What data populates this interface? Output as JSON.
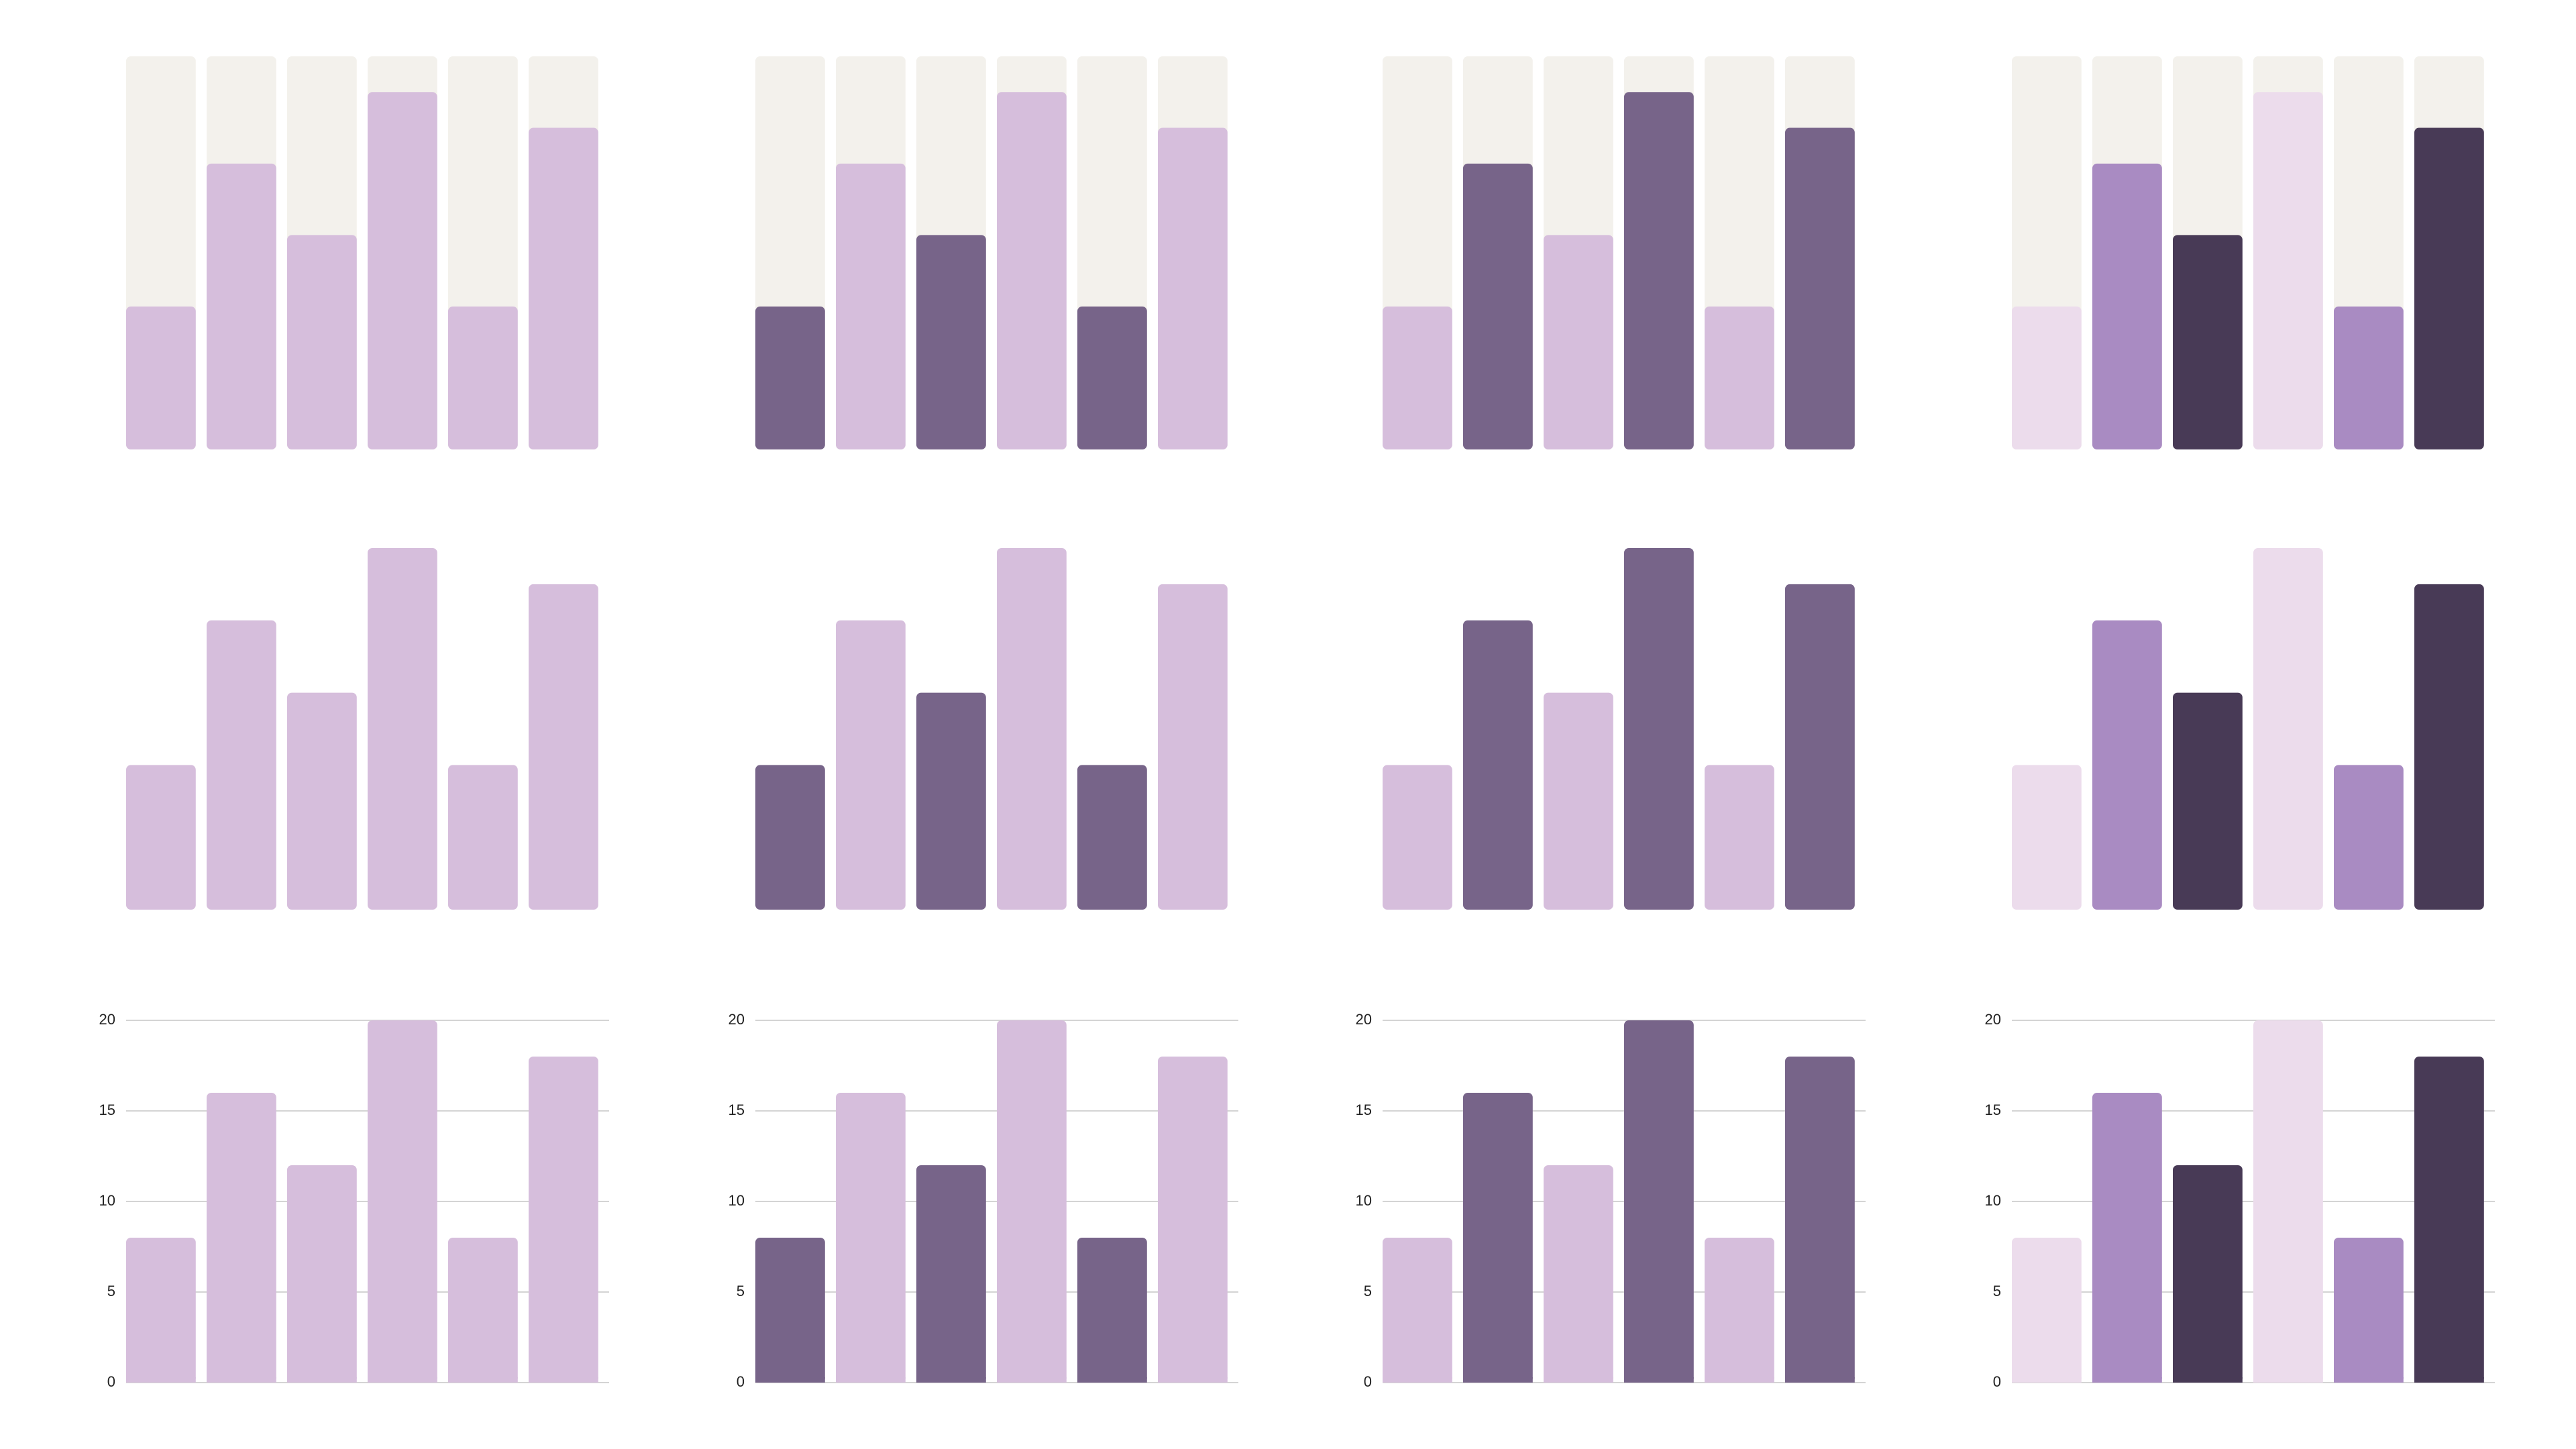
{
  "chart_data": [
    {
      "type": "bar",
      "values": [
        8,
        16,
        12,
        20,
        8,
        18
      ],
      "colors": [
        "#d6bedc",
        "#d6bedc",
        "#d6bedc",
        "#d6bedc",
        "#d6bedc",
        "#d6bedc"
      ],
      "track_color": "#f3f1ec",
      "ylim": [
        0,
        22
      ]
    },
    {
      "type": "bar",
      "values": [
        8,
        16,
        12,
        20,
        8,
        18
      ],
      "colors": [
        "#776489",
        "#d6bedc",
        "#776489",
        "#d6bedc",
        "#776489",
        "#d6bedc"
      ],
      "track_color": "#f3f1ec",
      "ylim": [
        0,
        22
      ]
    },
    {
      "type": "bar",
      "values": [
        8,
        16,
        12,
        20,
        8,
        18
      ],
      "colors": [
        "#d6bedc",
        "#776489",
        "#d6bedc",
        "#776489",
        "#d6bedc",
        "#776489"
      ],
      "track_color": "#f3f1ec",
      "ylim": [
        0,
        22
      ]
    },
    {
      "type": "bar",
      "values": [
        8,
        16,
        12,
        20,
        8,
        18
      ],
      "colors": [
        "#ecdcec",
        "#a98bc2",
        "#483a56",
        "#ecdcec",
        "#a98bc2",
        "#483a56"
      ],
      "track_color": "#f3f1ec",
      "ylim": [
        0,
        22
      ]
    },
    {
      "type": "bar",
      "values": [
        8,
        16,
        12,
        20,
        8,
        18
      ],
      "colors": [
        "#d6bedc",
        "#d6bedc",
        "#d6bedc",
        "#d6bedc",
        "#d6bedc",
        "#d6bedc"
      ],
      "ylim": [
        0,
        20
      ]
    },
    {
      "type": "bar",
      "values": [
        8,
        16,
        12,
        20,
        8,
        18
      ],
      "colors": [
        "#776489",
        "#d6bedc",
        "#776489",
        "#d6bedc",
        "#776489",
        "#d6bedc"
      ],
      "ylim": [
        0,
        20
      ]
    },
    {
      "type": "bar",
      "values": [
        8,
        16,
        12,
        20,
        8,
        18
      ],
      "colors": [
        "#d6bedc",
        "#776489",
        "#d6bedc",
        "#776489",
        "#d6bedc",
        "#776489"
      ],
      "ylim": [
        0,
        20
      ]
    },
    {
      "type": "bar",
      "values": [
        8,
        16,
        12,
        20,
        8,
        18
      ],
      "colors": [
        "#ecdcec",
        "#a98bc2",
        "#483a56",
        "#ecdcec",
        "#a98bc2",
        "#483a56"
      ],
      "ylim": [
        0,
        20
      ]
    },
    {
      "type": "bar",
      "values": [
        8,
        16,
        12,
        20,
        8,
        18
      ],
      "colors": [
        "#d6bedc",
        "#d6bedc",
        "#d6bedc",
        "#d6bedc",
        "#d6bedc",
        "#d6bedc"
      ],
      "ylim": [
        0,
        20
      ],
      "yticks": [
        0,
        5,
        10,
        15,
        20
      ],
      "grid": true
    },
    {
      "type": "bar",
      "values": [
        8,
        16,
        12,
        20,
        8,
        18
      ],
      "colors": [
        "#776489",
        "#d6bedc",
        "#776489",
        "#d6bedc",
        "#776489",
        "#d6bedc"
      ],
      "ylim": [
        0,
        20
      ],
      "yticks": [
        0,
        5,
        10,
        15,
        20
      ],
      "grid": true
    },
    {
      "type": "bar",
      "values": [
        8,
        16,
        12,
        20,
        8,
        18
      ],
      "colors": [
        "#d6bedc",
        "#776489",
        "#d6bedc",
        "#776489",
        "#d6bedc",
        "#776489"
      ],
      "ylim": [
        0,
        20
      ],
      "yticks": [
        0,
        5,
        10,
        15,
        20
      ],
      "grid": true
    },
    {
      "type": "bar",
      "values": [
        8,
        16,
        12,
        20,
        8,
        18
      ],
      "colors": [
        "#ecdcec",
        "#a98bc2",
        "#483a56",
        "#ecdcec",
        "#a98bc2",
        "#483a56"
      ],
      "ylim": [
        0,
        20
      ],
      "yticks": [
        0,
        5,
        10,
        15,
        20
      ],
      "grid": true
    }
  ]
}
